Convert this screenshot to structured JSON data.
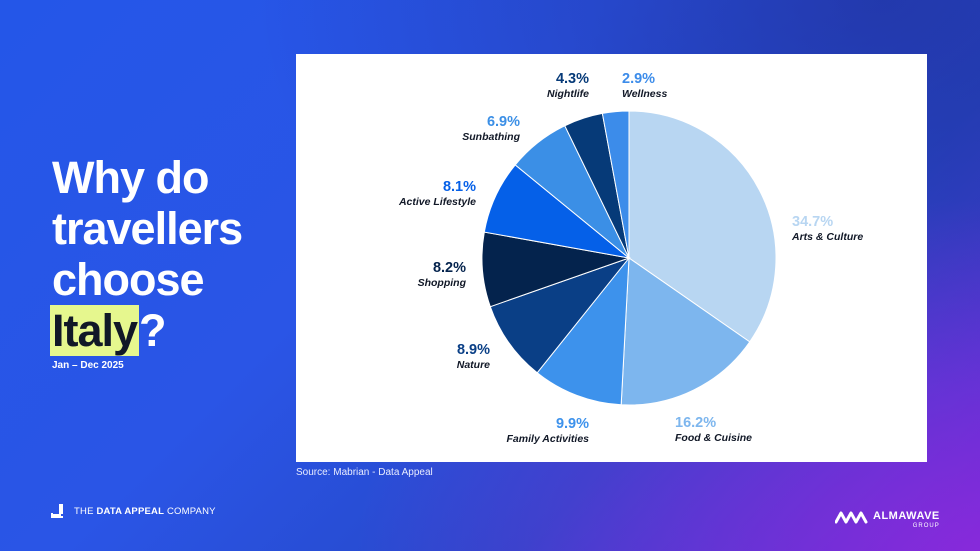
{
  "title": {
    "line1": "Why do",
    "line2": "travellers",
    "line3": "choose",
    "highlight": "Italy",
    "suffix": "?"
  },
  "period": "Jan – Dec 2025",
  "source": "Source: Mabrian - Data Appeal",
  "company": {
    "prefix": "THE ",
    "bold": "DATA APPEAL",
    "suffix": " COMPANY"
  },
  "partner": {
    "name": "ALMAWAVE",
    "group": "GROUP"
  },
  "colors": {
    "highlight": "#e6f78e"
  },
  "chart_data": {
    "type": "pie",
    "start_angle_deg": 0,
    "direction": "clockwise",
    "slices": [
      {
        "label": "Arts & Culture",
        "value": 34.7,
        "value_label": "34.7%",
        "color": "#b8d6f2",
        "label_color": "#b8d6f2"
      },
      {
        "label": "Food & Cuisine",
        "value": 16.2,
        "value_label": "16.2%",
        "color": "#7db6ee",
        "label_color": "#7db6ee"
      },
      {
        "label": "Family Activities",
        "value": 9.9,
        "value_label": "9.9%",
        "color": "#3d92ec",
        "label_color": "#3d92ec"
      },
      {
        "label": "Nature",
        "value": 8.9,
        "value_label": "8.9%",
        "color": "#0a3f86",
        "label_color": "#0a3f86"
      },
      {
        "label": "Shopping",
        "value": 8.2,
        "value_label": "8.2%",
        "color": "#04234d",
        "label_color": "#04234d"
      },
      {
        "label": "Active Lifestyle",
        "value": 8.1,
        "value_label": "8.1%",
        "color": "#0560e8",
        "label_color": "#0560e8"
      },
      {
        "label": "Sunbathing",
        "value": 6.9,
        "value_label": "6.9%",
        "color": "#3b8fe6",
        "label_color": "#3b8fe6"
      },
      {
        "label": "Nightlife",
        "value": 4.3,
        "value_label": "4.3%",
        "color": "#063a78",
        "label_color": "#063a78"
      },
      {
        "label": "Wellness",
        "value": 2.9,
        "value_label": "2.9%",
        "color": "#3c8cea",
        "label_color": "#3c8cea"
      }
    ]
  }
}
